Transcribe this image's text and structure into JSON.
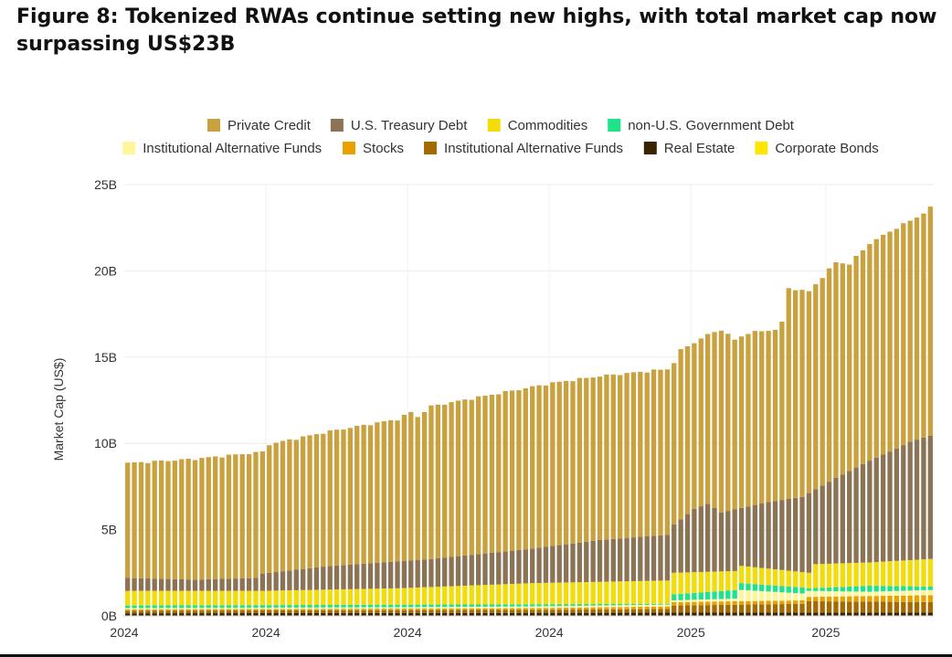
{
  "figure": {
    "title_line1": "Figure 8: Tokenized RWAs continue setting new highs, with total market cap now",
    "title_line2": "surpassing US$23B"
  },
  "chart_data": {
    "type": "bar",
    "stacked": true,
    "grid": true,
    "legend_position": "top",
    "ylabel": "Market Cap (US$)",
    "ylim": [
      0,
      25
    ],
    "yunit": "B",
    "y_ticks": [
      "0B",
      "5B",
      "10B",
      "15B",
      "20B",
      "25B"
    ],
    "x_tick_labels": [
      "2024",
      "2024",
      "2024",
      "2024",
      "2025",
      "2025"
    ],
    "x_tick_positions": [
      0,
      21,
      42,
      63,
      84,
      104
    ],
    "n_bars": 120,
    "legend": [
      {
        "name": "Private Credit",
        "color": "#C9A23F"
      },
      {
        "name": "U.S. Treasury Debt",
        "color": "#8B7355"
      },
      {
        "name": "Commodities",
        "color": "#F2DC0A"
      },
      {
        "name": "non-U.S. Government Debt",
        "color": "#1EE38A"
      },
      {
        "name": "Institutional Alternative Funds",
        "color": "#FFF59A"
      },
      {
        "name": "Stocks",
        "color": "#E8A200"
      },
      {
        "name": "Institutional Alternative Funds",
        "color": "#A36A00"
      },
      {
        "name": "Real Estate",
        "color": "#3A2400"
      },
      {
        "name": "Corporate Bonds",
        "color": "#FFE600"
      }
    ],
    "total_keypoints": [
      [
        0,
        8.85
      ],
      [
        10,
        9.1
      ],
      [
        20,
        9.5
      ],
      [
        21,
        9.95
      ],
      [
        30,
        10.7
      ],
      [
        40,
        11.4
      ],
      [
        42,
        11.8
      ],
      [
        43,
        11.55
      ],
      [
        45,
        12.15
      ],
      [
        55,
        12.9
      ],
      [
        63,
        13.5
      ],
      [
        70,
        13.9
      ],
      [
        80,
        14.3
      ],
      [
        81,
        14.7
      ],
      [
        82,
        15.4
      ],
      [
        86,
        16.3
      ],
      [
        88,
        16.6
      ],
      [
        90,
        16.0
      ],
      [
        92,
        16.4
      ],
      [
        96,
        16.6
      ],
      [
        97,
        17.0
      ],
      [
        98,
        19.0
      ],
      [
        101,
        18.8
      ],
      [
        105,
        20.5
      ],
      [
        107,
        20.4
      ],
      [
        110,
        21.6
      ],
      [
        114,
        22.5
      ],
      [
        117,
        23.1
      ],
      [
        119,
        23.65
      ]
    ],
    "treasury_top_keypoints": [
      [
        0,
        2.2
      ],
      [
        10,
        2.1
      ],
      [
        19,
        2.2
      ],
      [
        20,
        2.45
      ],
      [
        30,
        2.9
      ],
      [
        45,
        3.3
      ],
      [
        60,
        3.9
      ],
      [
        70,
        4.4
      ],
      [
        80,
        4.7
      ],
      [
        81,
        5.3
      ],
      [
        84,
        6.2
      ],
      [
        86,
        6.5
      ],
      [
        88,
        6.0
      ],
      [
        95,
        6.6
      ],
      [
        100,
        6.9
      ],
      [
        105,
        8.0
      ],
      [
        110,
        9.0
      ],
      [
        114,
        9.7
      ],
      [
        116,
        10.1
      ],
      [
        119,
        10.45
      ]
    ],
    "commodities_top_keypoints": [
      [
        0,
        1.45
      ],
      [
        20,
        1.45
      ],
      [
        40,
        1.6
      ],
      [
        60,
        1.9
      ],
      [
        80,
        2.05
      ],
      [
        81,
        2.5
      ],
      [
        90,
        2.6
      ],
      [
        91,
        2.9
      ],
      [
        101,
        2.5
      ],
      [
        102,
        3.0
      ],
      [
        110,
        3.1
      ],
      [
        119,
        3.3
      ]
    ],
    "govdebt_top_keypoints": [
      [
        0,
        0.6
      ],
      [
        80,
        0.7
      ],
      [
        81,
        1.25
      ],
      [
        90,
        1.5
      ],
      [
        91,
        1.9
      ],
      [
        100,
        1.65
      ],
      [
        101,
        1.6
      ],
      [
        110,
        1.75
      ],
      [
        119,
        1.7
      ]
    ],
    "altfund_top_keypoints": [
      [
        0,
        0.45
      ],
      [
        40,
        0.5
      ],
      [
        60,
        0.55
      ],
      [
        80,
        0.65
      ],
      [
        81,
        0.9
      ],
      [
        90,
        1.0
      ],
      [
        91,
        1.5
      ],
      [
        100,
        1.3
      ],
      [
        101,
        1.45
      ],
      [
        110,
        1.4
      ],
      [
        119,
        1.5
      ]
    ],
    "stocks_top_keypoints": [
      [
        0,
        0.38
      ],
      [
        60,
        0.45
      ],
      [
        80,
        0.55
      ],
      [
        81,
        0.8
      ],
      [
        100,
        0.9
      ],
      [
        101,
        1.1
      ],
      [
        119,
        1.2
      ]
    ],
    "altfund2_top_keypoints": [
      [
        0,
        0.3
      ],
      [
        60,
        0.35
      ],
      [
        80,
        0.4
      ],
      [
        81,
        0.6
      ],
      [
        100,
        0.7
      ],
      [
        101,
        0.85
      ],
      [
        119,
        0.8
      ]
    ],
    "realestate_top_keypoints": [
      [
        0,
        0.15
      ],
      [
        119,
        0.2
      ]
    ]
  }
}
